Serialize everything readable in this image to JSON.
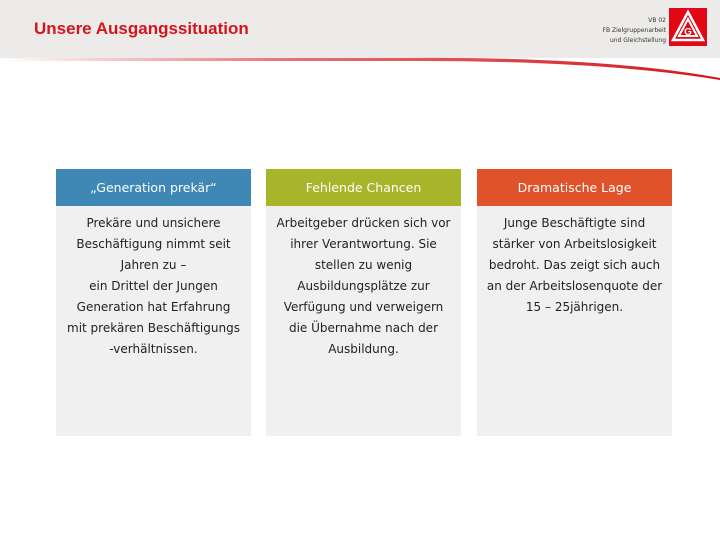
{
  "header": {
    "title": "Unsere Ausgangssituation",
    "org_lines": [
      "VB 02",
      "FB Zielgruppenarbeit",
      "und Gleichstellung"
    ],
    "logo": "IGM",
    "accent": "#d4151c"
  },
  "columns": [
    {
      "title": "„Generation prekär“",
      "color": "#3f87b5",
      "lines": [
        "Prekäre und unsichere",
        "Beschäftigung nimmt seit",
        "Jahren zu –",
        "ein Drittel der Jungen",
        "Generation hat Erfahrung",
        "mit prekären Beschäftigungs",
        "-verhältnissen."
      ]
    },
    {
      "title": "Fehlende Chancen",
      "color": "#a8b52a",
      "lines": [
        "Arbeitgeber drücken sich vor",
        "ihrer Verantwortung. Sie",
        "stellen zu wenig",
        "Ausbildungsplätze zur",
        "Verfügung und verweigern",
        "die Übernahme nach der",
        "Ausbildung."
      ]
    },
    {
      "title": "Dramatische Lage",
      "color": "#e0522a",
      "lines": [
        "Junge Beschäftigte sind",
        "stärker von Arbeitslosigkeit",
        "bedroht. Das zeigt sich auch",
        "an der Arbeitslosenquote der",
        "15 – 25jährigen."
      ]
    }
  ]
}
